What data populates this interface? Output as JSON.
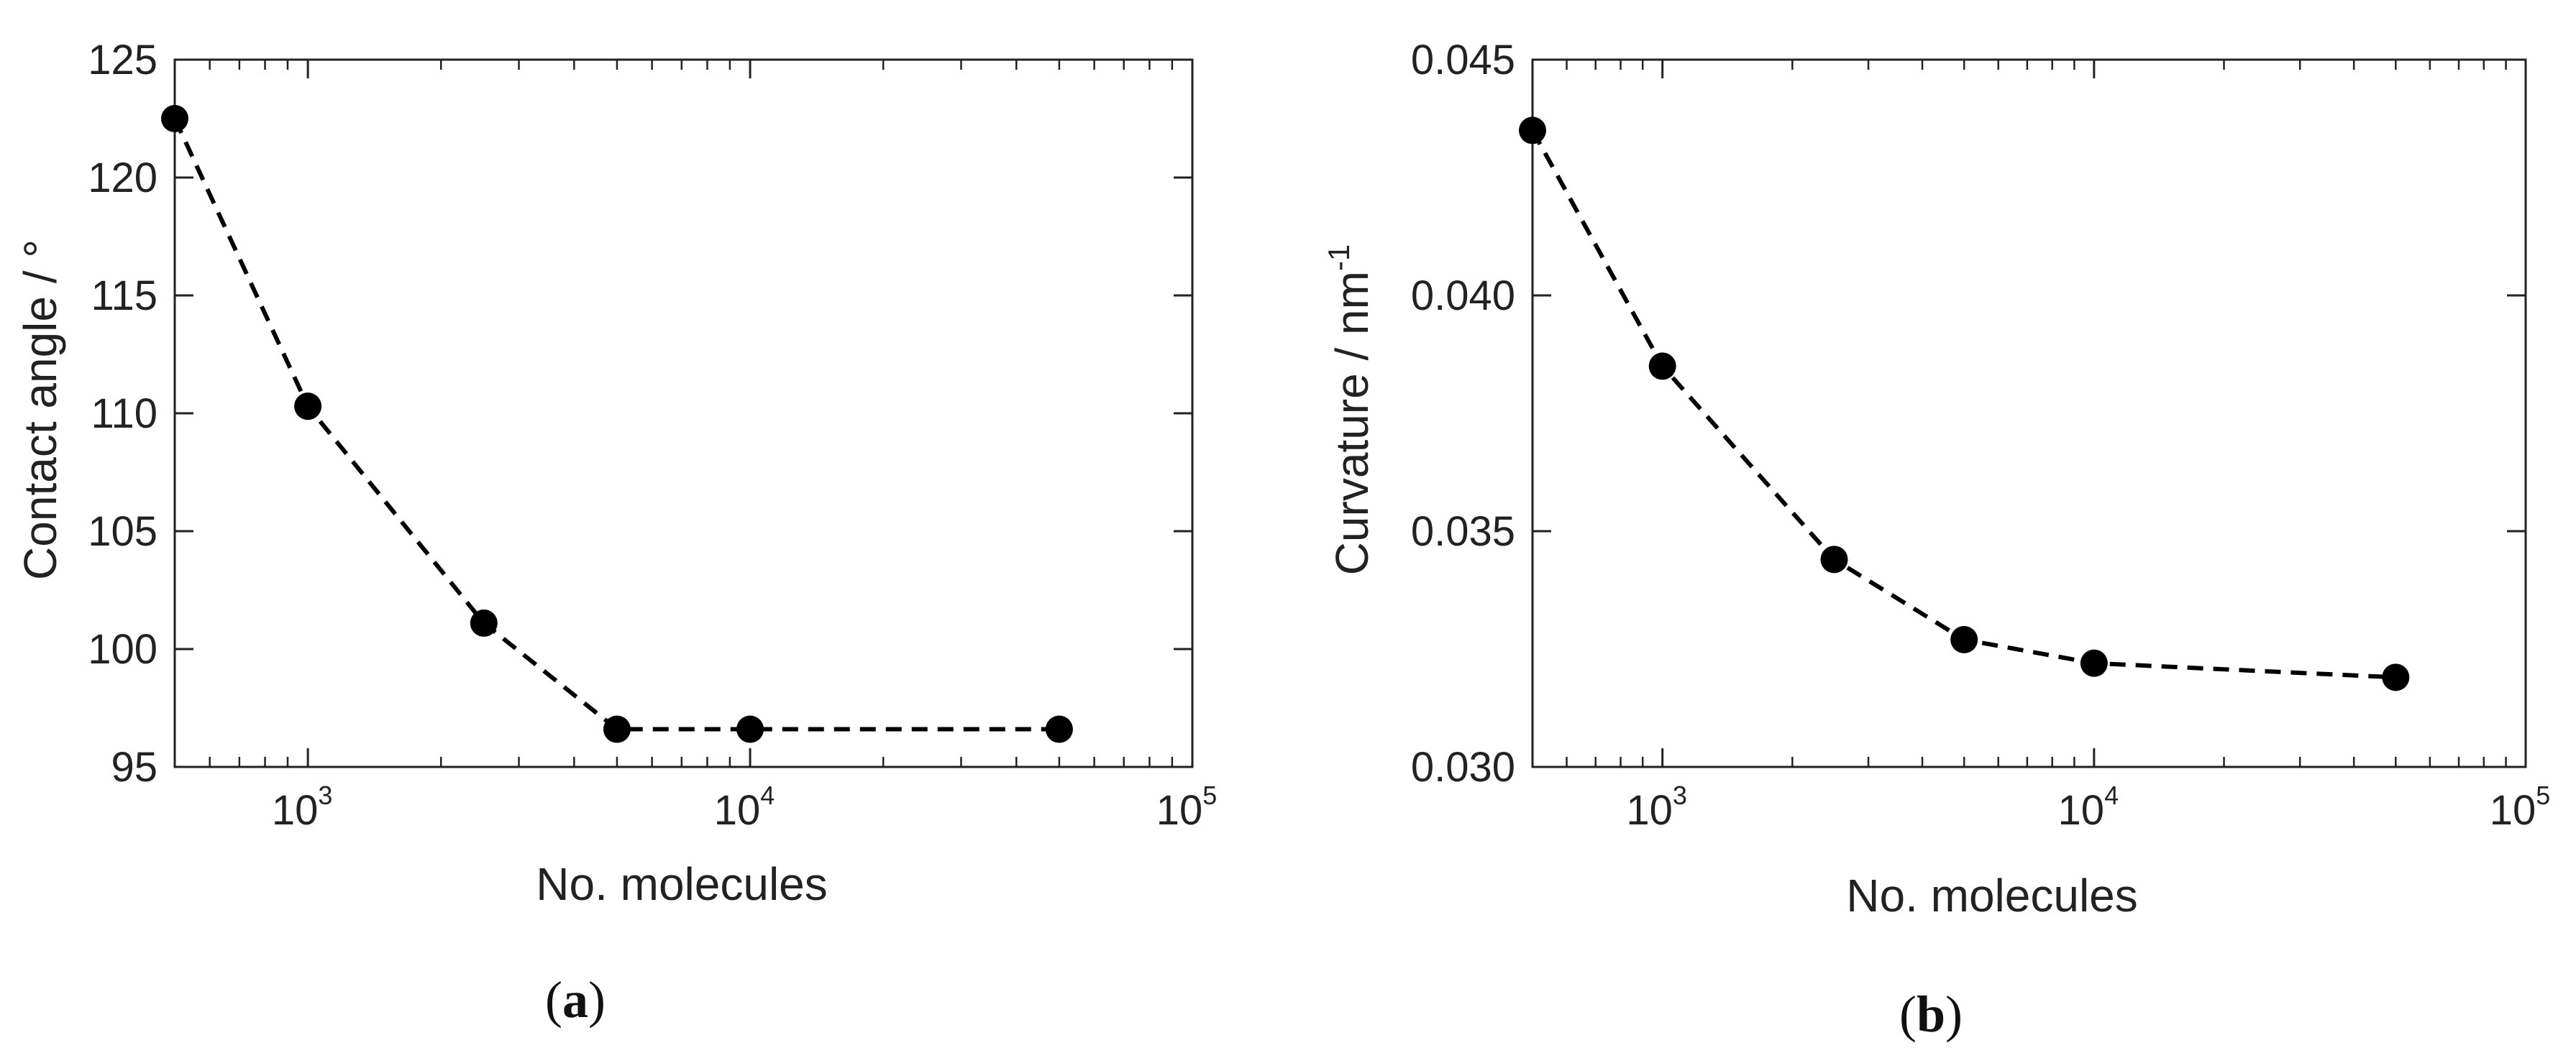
{
  "chart_data": [
    {
      "type": "line",
      "panel_label": "a",
      "xlabel": "No. molecules",
      "ylabel": "Contact angle / °",
      "xscale": "log",
      "xlim": [
        500,
        100000
      ],
      "ylim": [
        95,
        125
      ],
      "x_ticks": [
        {
          "value": 1000,
          "base": "10",
          "exp": "3"
        },
        {
          "value": 10000,
          "base": "10",
          "exp": "4"
        },
        {
          "value": 100000,
          "base": "10",
          "exp": "5"
        }
      ],
      "y_ticks": [
        "95",
        "100",
        "105",
        "110",
        "115",
        "120",
        "125"
      ],
      "marker": "filled-circle",
      "line_style": "dashed",
      "color": "#000000",
      "x": [
        500,
        1000,
        2500,
        5000,
        10000,
        50000
      ],
      "y": [
        122.5,
        110.3,
        101.1,
        96.6,
        96.6,
        96.6
      ]
    },
    {
      "type": "line",
      "panel_label": "b",
      "xlabel": "No. molecules",
      "ylabel": "Curvature / nm",
      "ylabel_superscript": "-1",
      "xscale": "log",
      "xlim": [
        500,
        100000
      ],
      "ylim": [
        0.03,
        0.045
      ],
      "x_ticks": [
        {
          "value": 1000,
          "base": "10",
          "exp": "3"
        },
        {
          "value": 10000,
          "base": "10",
          "exp": "4"
        },
        {
          "value": 100000,
          "base": "10",
          "exp": "5"
        }
      ],
      "y_ticks": [
        "0.030",
        "0.035",
        "0.040",
        "0.045"
      ],
      "marker": "filled-circle",
      "line_style": "dashed",
      "color": "#000000",
      "x": [
        500,
        1000,
        2500,
        5000,
        10000,
        50000
      ],
      "y": [
        0.0435,
        0.0385,
        0.0344,
        0.0327,
        0.0322,
        0.0319
      ]
    }
  ]
}
